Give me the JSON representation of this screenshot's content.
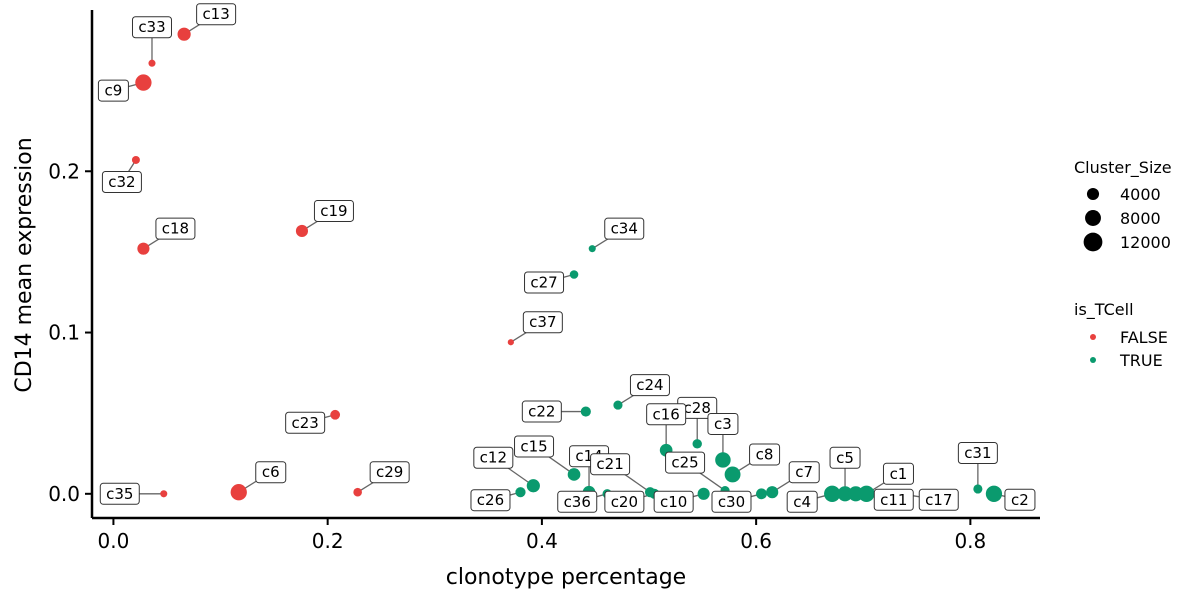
{
  "chart_data": {
    "type": "scatter",
    "xlabel": "clonotype percentage",
    "ylabel": "CD14 mean expression",
    "xlim": [
      -0.02,
      0.865
    ],
    "ylim": [
      -0.015,
      0.3
    ],
    "xticks": [
      {
        "value": 0.0,
        "label": "0.0"
      },
      {
        "value": 0.2,
        "label": "0.2"
      },
      {
        "value": 0.4,
        "label": "0.4"
      },
      {
        "value": 0.6,
        "label": "0.6"
      },
      {
        "value": 0.8,
        "label": "0.8"
      }
    ],
    "yticks": [
      {
        "value": 0.0,
        "label": "0.0"
      },
      {
        "value": 0.1,
        "label": "0.1"
      },
      {
        "value": 0.2,
        "label": "0.2"
      }
    ],
    "grid": false,
    "colors": {
      "FALSE": "#e8403e",
      "TRUE": "#0a9a6e"
    },
    "legend": {
      "placement": "right",
      "size_title": "Cluster_Size",
      "size_items": [
        {
          "label": "4000",
          "value": 4000
        },
        {
          "label": "8000",
          "value": 8000
        },
        {
          "label": "12000",
          "value": 12000
        }
      ],
      "color_title": "is_TCell",
      "color_items": [
        {
          "label": "FALSE",
          "key": "FALSE"
        },
        {
          "label": "TRUE",
          "key": "TRUE"
        }
      ]
    },
    "points": [
      {
        "label": "c13",
        "x": 0.066,
        "y": 0.285,
        "size": 5000,
        "is_tcell": "FALSE",
        "label_dir": "ne"
      },
      {
        "label": "c33",
        "x": 0.036,
        "y": 0.267,
        "size": 800,
        "is_tcell": "FALSE",
        "label_dir": "n"
      },
      {
        "label": "c9",
        "x": 0.028,
        "y": 0.255,
        "size": 8500,
        "is_tcell": "FALSE",
        "label_dir": "sw"
      },
      {
        "label": "c32",
        "x": 0.021,
        "y": 0.207,
        "size": 1200,
        "is_tcell": "FALSE",
        "label_dir": "s"
      },
      {
        "label": "c18",
        "x": 0.028,
        "y": 0.152,
        "size": 4000,
        "is_tcell": "FALSE",
        "label_dir": "ne"
      },
      {
        "label": "c19",
        "x": 0.176,
        "y": 0.163,
        "size": 4000,
        "is_tcell": "FALSE",
        "label_dir": "ne"
      },
      {
        "label": "c34",
        "x": 0.447,
        "y": 0.152,
        "size": 800,
        "is_tcell": "TRUE",
        "label_dir": "ne"
      },
      {
        "label": "c27",
        "x": 0.43,
        "y": 0.136,
        "size": 1500,
        "is_tcell": "TRUE",
        "label_dir": "sw"
      },
      {
        "label": "c37",
        "x": 0.371,
        "y": 0.094,
        "size": 500,
        "is_tcell": "FALSE",
        "label_dir": "ne"
      },
      {
        "label": "c22",
        "x": 0.441,
        "y": 0.051,
        "size": 2500,
        "is_tcell": "TRUE",
        "label_dir": "w"
      },
      {
        "label": "c24",
        "x": 0.471,
        "y": 0.055,
        "size": 1800,
        "is_tcell": "TRUE",
        "label_dir": "ne"
      },
      {
        "label": "c28",
        "x": 0.545,
        "y": 0.031,
        "size": 2000,
        "is_tcell": "TRUE",
        "label_dir": "n"
      },
      {
        "label": "c23",
        "x": 0.207,
        "y": 0.049,
        "size": 2200,
        "is_tcell": "FALSE",
        "label_dir": "sw"
      },
      {
        "label": "c16",
        "x": 0.516,
        "y": 0.027,
        "size": 4500,
        "is_tcell": "TRUE",
        "label_dir": "n"
      },
      {
        "label": "c3",
        "x": 0.569,
        "y": 0.021,
        "size": 7500,
        "is_tcell": "TRUE",
        "label_dir": "n"
      },
      {
        "label": "c14",
        "x": 0.444,
        "y": 0.001,
        "size": 4500,
        "is_tcell": "TRUE",
        "label_dir": "n"
      },
      {
        "label": "c12",
        "x": 0.392,
        "y": 0.005,
        "size": 5000,
        "is_tcell": "TRUE",
        "label_dir": "nw"
      },
      {
        "label": "c15",
        "x": 0.43,
        "y": 0.012,
        "size": 4500,
        "is_tcell": "TRUE",
        "label_dir": "nw"
      },
      {
        "label": "c21",
        "x": 0.501,
        "y": 0.001,
        "size": 2500,
        "is_tcell": "TRUE",
        "label_dir": "nw"
      },
      {
        "label": "c25",
        "x": 0.571,
        "y": 0.002,
        "size": 1800,
        "is_tcell": "TRUE",
        "label_dir": "nw"
      },
      {
        "label": "c8",
        "x": 0.578,
        "y": 0.012,
        "size": 8000,
        "is_tcell": "TRUE",
        "label_dir": "ne"
      },
      {
        "label": "c7",
        "x": 0.615,
        "y": 0.001,
        "size": 4000,
        "is_tcell": "TRUE",
        "label_dir": "ne"
      },
      {
        "label": "c5",
        "x": 0.683,
        "y": 0.0,
        "size": 7000,
        "is_tcell": "TRUE",
        "label_dir": "n"
      },
      {
        "label": "c1",
        "x": 0.703,
        "y": 0.0,
        "size": 8500,
        "is_tcell": "TRUE",
        "label_dir": "ne"
      },
      {
        "label": "c31",
        "x": 0.807,
        "y": 0.003,
        "size": 1800,
        "is_tcell": "TRUE",
        "label_dir": "n"
      },
      {
        "label": "c26",
        "x": 0.38,
        "y": 0.001,
        "size": 2500,
        "is_tcell": "TRUE",
        "label_dir": "sw"
      },
      {
        "label": "c36",
        "x": 0.461,
        "y": 0.0,
        "size": 2000,
        "is_tcell": "TRUE",
        "label_dir": "sw"
      },
      {
        "label": "c20",
        "x": 0.505,
        "y": 0.0,
        "size": 2500,
        "is_tcell": "TRUE",
        "label_dir": "sw"
      },
      {
        "label": "c10",
        "x": 0.551,
        "y": 0.0,
        "size": 4000,
        "is_tcell": "TRUE",
        "label_dir": "sw"
      },
      {
        "label": "c30",
        "x": 0.605,
        "y": 0.0,
        "size": 3000,
        "is_tcell": "TRUE",
        "label_dir": "sw"
      },
      {
        "label": "c4",
        "x": 0.671,
        "y": 0.0,
        "size": 8500,
        "is_tcell": "TRUE",
        "label_dir": "sw"
      },
      {
        "label": "c11",
        "x": 0.693,
        "y": 0.0,
        "size": 7000,
        "is_tcell": "TRUE",
        "label_dir": "se"
      },
      {
        "label": "c17",
        "x": 0.735,
        "y": 0.0,
        "size": 1500,
        "is_tcell": "TRUE",
        "label_dir": "se"
      },
      {
        "label": "c2",
        "x": 0.822,
        "y": 0.0,
        "size": 8500,
        "is_tcell": "TRUE",
        "label_dir": "e"
      },
      {
        "label": "c6",
        "x": 0.117,
        "y": 0.001,
        "size": 8500,
        "is_tcell": "FALSE",
        "label_dir": "ne"
      },
      {
        "label": "c29",
        "x": 0.228,
        "y": 0.001,
        "size": 1500,
        "is_tcell": "FALSE",
        "label_dir": "ne"
      },
      {
        "label": "c35",
        "x": 0.047,
        "y": 0.0,
        "size": 800,
        "is_tcell": "FALSE",
        "label_dir": "w"
      }
    ]
  }
}
